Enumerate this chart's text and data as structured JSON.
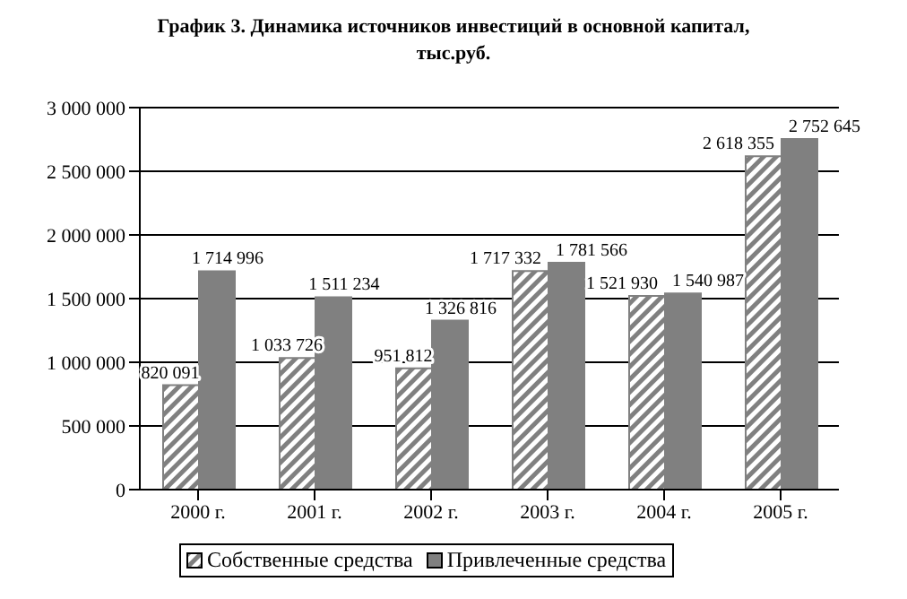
{
  "chart_data": {
    "type": "bar",
    "title": "График 3. Динамика источников инвестиций в основной капитал, тыс.руб.",
    "categories": [
      "2000 г.",
      "2001 г.",
      "2002 г.",
      "2003 г.",
      "2004 г.",
      "2005 г."
    ],
    "series": [
      {
        "name": "Собственные средства",
        "color": "#808080",
        "values": [
          820091,
          1033726,
          951812,
          1717332,
          1521930,
          2618355
        ],
        "value_labels": [
          "820 091",
          "1 033 726",
          "951 812",
          "1 717 332",
          "1 521 930",
          "2 618 355"
        ]
      },
      {
        "name": "Привлеченные средства",
        "color": "#808080",
        "values": [
          1714996,
          1511234,
          1326816,
          1781566,
          1540987,
          2752645
        ],
        "value_labels": [
          "1 714 996",
          "1 511 234",
          "1 326 816",
          "1 781 566",
          "1 540 987",
          "2 752 645"
        ]
      }
    ],
    "ylim": [
      0,
      3000000
    ],
    "yticks": [
      {
        "value": 0,
        "label": "0"
      },
      {
        "value": 500000,
        "label": "500 000"
      },
      {
        "value": 1000000,
        "label": "1 000 000"
      },
      {
        "value": 1500000,
        "label": "1 500 000"
      },
      {
        "value": 2000000,
        "label": "2 000 000"
      },
      {
        "value": 2500000,
        "label": "2 500 000"
      },
      {
        "value": 3000000,
        "label": "3 000 000"
      }
    ],
    "grid": "y",
    "legend": "bottom"
  }
}
